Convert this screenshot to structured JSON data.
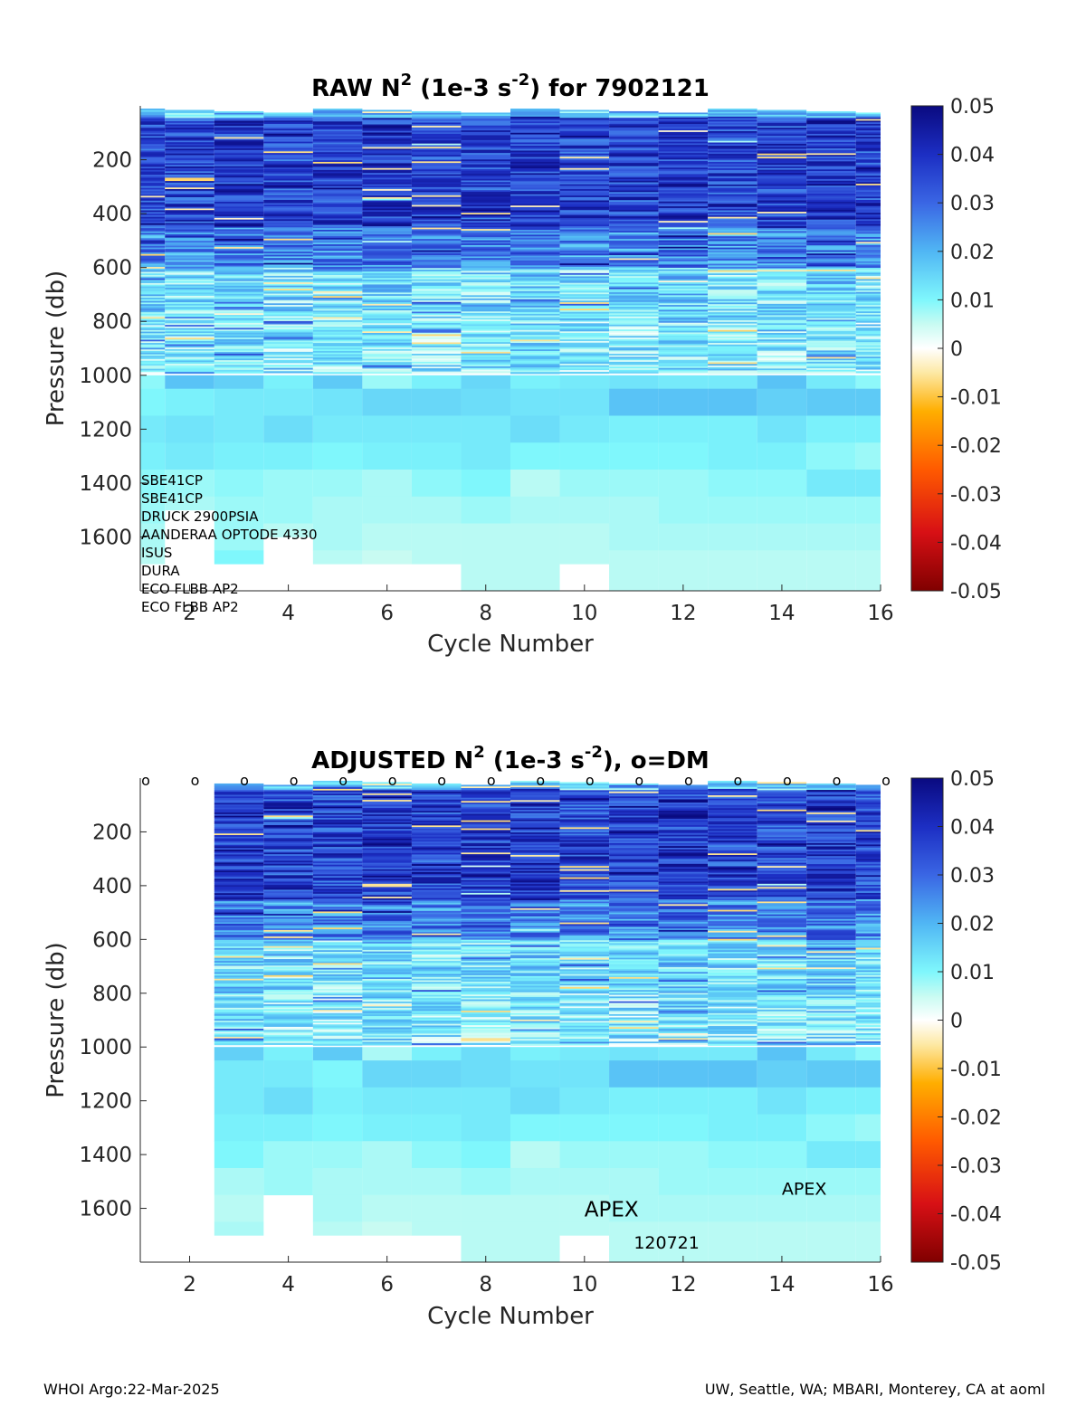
{
  "footer": {
    "left": "WHOI Argo:22-Mar-2025",
    "right": "UW, Seattle, WA; MBARI, Monterey, CA at aoml"
  },
  "chart_data": [
    {
      "type": "heatmap",
      "panel": "raw",
      "title": "RAW N^2 (1e-3 s^-2) for 7902121",
      "title_parts": {
        "main": "RAW N",
        "sup1": "2",
        "mid": " (1e-3 s",
        "sup2": "-2",
        "tail": ") for 7902121"
      },
      "xlabel": "Cycle Number",
      "ylabel": "Pressure (db)",
      "xlim": [
        1,
        16
      ],
      "ylim": [
        0,
        1800
      ],
      "y_reversed": true,
      "xticks": [
        2,
        4,
        6,
        8,
        10,
        12,
        14,
        16
      ],
      "yticks": [
        200,
        400,
        600,
        800,
        1000,
        1200,
        1400,
        1600
      ],
      "colorbar": {
        "min": -0.05,
        "max": 0.05,
        "ticks": [
          "0.05",
          "0.04",
          "0.03",
          "0.02",
          "0.01",
          "0",
          "-0.01",
          "-0.02",
          "-0.03",
          "-0.04",
          "-0.05"
        ]
      },
      "cycles": [
        1,
        2,
        3,
        4,
        5,
        6,
        7,
        8,
        9,
        10,
        11,
        12,
        13,
        14,
        15,
        16
      ],
      "max_pressure": [
        1700,
        1500,
        1700,
        1600,
        1700,
        1700,
        1700,
        1800,
        1800,
        1700,
        1800,
        1800,
        1800,
        1800,
        1800,
        1800
      ],
      "deep_layers": {
        "pressures": [
          1000,
          1050,
          1150,
          1250,
          1350,
          1450,
          1550,
          1650,
          1750
        ],
        "values": [
          [
            0.009,
            0.01,
            0.012,
            0.011,
            0.009,
            0.008,
            0.007,
            0.006,
            0.006
          ],
          [
            0.018,
            0.011,
            0.013,
            0.012,
            0.008,
            0.007,
            0.006,
            0.006,
            0.006
          ],
          [
            0.016,
            0.012,
            0.012,
            0.011,
            0.009,
            0.008,
            0.008,
            0.01,
            0.006
          ],
          [
            0.011,
            0.012,
            0.014,
            0.011,
            0.008,
            0.008,
            0.006,
            0.006,
            0.006
          ],
          [
            0.017,
            0.013,
            0.012,
            0.01,
            0.008,
            0.007,
            0.007,
            0.006,
            0.006
          ],
          [
            0.008,
            0.015,
            0.012,
            0.011,
            0.007,
            0.007,
            0.006,
            0.005,
            0.006
          ],
          [
            0.011,
            0.015,
            0.012,
            0.011,
            0.009,
            0.007,
            0.006,
            0.006,
            0.006
          ],
          [
            0.015,
            0.014,
            0.012,
            0.012,
            0.01,
            0.008,
            0.006,
            0.006,
            0.006
          ],
          [
            0.011,
            0.013,
            0.014,
            0.01,
            0.006,
            0.007,
            0.006,
            0.006,
            0.006
          ],
          [
            0.012,
            0.013,
            0.012,
            0.01,
            0.008,
            0.007,
            0.006,
            0.006,
            0.006
          ],
          [
            0.013,
            0.018,
            0.011,
            0.01,
            0.008,
            0.007,
            0.007,
            0.006,
            0.006
          ],
          [
            0.012,
            0.018,
            0.011,
            0.01,
            0.008,
            0.008,
            0.007,
            0.006,
            0.006
          ],
          [
            0.012,
            0.018,
            0.011,
            0.011,
            0.009,
            0.008,
            0.007,
            0.006,
            0.006
          ],
          [
            0.018,
            0.016,
            0.013,
            0.011,
            0.009,
            0.008,
            0.007,
            0.006,
            0.006
          ],
          [
            0.012,
            0.017,
            0.011,
            0.009,
            0.012,
            0.008,
            0.007,
            0.006,
            0.006
          ],
          [
            0.009,
            0.017,
            0.011,
            0.008,
            0.012,
            0.008,
            0.007,
            0.006,
            0.006
          ]
        ]
      },
      "annotations": [
        "SBE41CP",
        "SBE41CP",
        "DRUCK 2900PSIA",
        "AANDERAA OPTODE 4330",
        "ISUS",
        "DURA",
        "ECO FLBB AP2",
        "ECO FLBB AP2"
      ]
    },
    {
      "type": "heatmap",
      "panel": "adjusted",
      "title": "ADJUSTED N^2 (1e-3 s^-2), o=DM",
      "title_parts": {
        "main": "ADJUSTED N",
        "sup1": "2",
        "mid": " (1e-3 s",
        "sup2": "-2",
        "tail": "), o=DM"
      },
      "xlabel": "Cycle Number",
      "ylabel": "Pressure (db)",
      "xlim": [
        1,
        16
      ],
      "ylim": [
        0,
        1800
      ],
      "y_reversed": true,
      "xticks": [
        2,
        4,
        6,
        8,
        10,
        12,
        14,
        16
      ],
      "yticks": [
        200,
        400,
        600,
        800,
        1000,
        1200,
        1400,
        1600
      ],
      "colorbar": {
        "min": -0.05,
        "max": 0.05,
        "ticks": [
          "0.05",
          "0.04",
          "0.03",
          "0.02",
          "0.01",
          "0",
          "-0.01",
          "-0.02",
          "-0.03",
          "-0.04",
          "-0.05"
        ]
      },
      "cycles": [
        1,
        2,
        3,
        4,
        5,
        6,
        7,
        8,
        9,
        10,
        11,
        12,
        13,
        14,
        15,
        16
      ],
      "empty_cycles": [
        1,
        2
      ],
      "max_pressure": [
        0,
        0,
        1700,
        1550,
        1700,
        1700,
        1700,
        1800,
        1800,
        1700,
        1800,
        1800,
        1800,
        1800,
        1800,
        1800
      ],
      "dm_markers": {
        "label": "o",
        "cycles": [
          1,
          2,
          3,
          4,
          5,
          6,
          7,
          8,
          9,
          10,
          11,
          12,
          13,
          14,
          15,
          16
        ]
      },
      "deep_layers": {
        "pressures": [
          1000,
          1050,
          1150,
          1250,
          1350,
          1450,
          1550,
          1650,
          1750
        ],
        "values": [
          [
            0,
            0,
            0,
            0,
            0,
            0,
            0,
            0,
            0
          ],
          [
            0,
            0,
            0,
            0,
            0,
            0,
            0,
            0,
            0
          ],
          [
            0.016,
            0.012,
            0.012,
            0.011,
            0.01,
            0.007,
            0.006,
            0.007,
            0.006
          ],
          [
            0.011,
            0.012,
            0.014,
            0.011,
            0.008,
            0.008,
            0.006,
            0.006,
            0.006
          ],
          [
            0.017,
            0.01,
            0.011,
            0.01,
            0.008,
            0.007,
            0.007,
            0.006,
            0.006
          ],
          [
            0.007,
            0.015,
            0.012,
            0.011,
            0.007,
            0.007,
            0.006,
            0.005,
            0.006
          ],
          [
            0.011,
            0.015,
            0.012,
            0.011,
            0.009,
            0.007,
            0.006,
            0.006,
            0.006
          ],
          [
            0.014,
            0.014,
            0.012,
            0.012,
            0.01,
            0.008,
            0.006,
            0.006,
            0.006
          ],
          [
            0.011,
            0.013,
            0.014,
            0.01,
            0.006,
            0.007,
            0.006,
            0.006,
            0.006
          ],
          [
            0.012,
            0.013,
            0.012,
            0.01,
            0.008,
            0.007,
            0.006,
            0.006,
            0.006
          ],
          [
            0.013,
            0.018,
            0.011,
            0.01,
            0.008,
            0.007,
            0.007,
            0.006,
            0.006
          ],
          [
            0.012,
            0.018,
            0.011,
            0.01,
            0.008,
            0.008,
            0.007,
            0.006,
            0.006
          ],
          [
            0.012,
            0.018,
            0.011,
            0.011,
            0.009,
            0.008,
            0.007,
            0.006,
            0.006
          ],
          [
            0.018,
            0.016,
            0.013,
            0.011,
            0.009,
            0.008,
            0.007,
            0.006,
            0.006
          ],
          [
            0.012,
            0.017,
            0.011,
            0.009,
            0.012,
            0.008,
            0.007,
            0.006,
            0.006
          ],
          [
            0.009,
            0.017,
            0.011,
            0.008,
            0.012,
            0.008,
            0.007,
            0.006,
            0.006
          ]
        ]
      },
      "annotations": [
        {
          "text": "APEX",
          "cycle": 10,
          "pressure": 1630,
          "size": "large"
        },
        {
          "text": "120721",
          "cycle": 11,
          "pressure": 1750,
          "size": "small"
        },
        {
          "text": "APEX",
          "cycle": 14,
          "pressure": 1550,
          "size": "small"
        }
      ]
    }
  ]
}
